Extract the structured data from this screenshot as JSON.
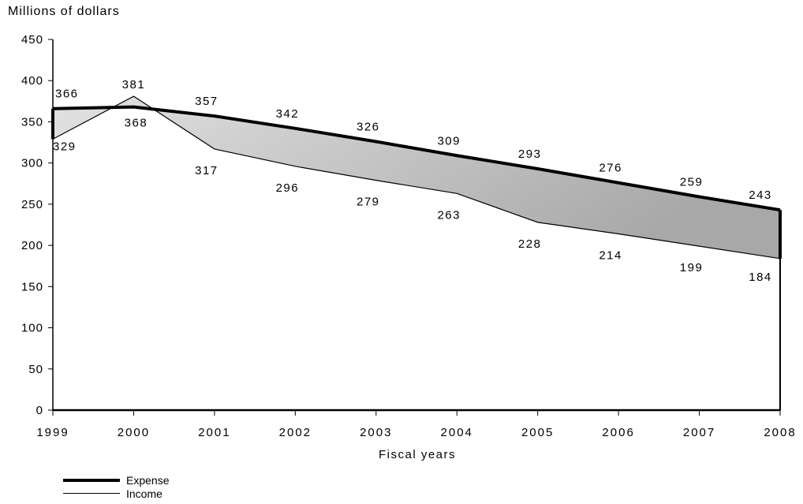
{
  "chart_data": {
    "type": "line",
    "title": "",
    "ylabel": "Millions of dollars",
    "xlabel": "Fiscal years",
    "x": [
      "1999",
      "2000",
      "2001",
      "2002",
      "2003",
      "2004",
      "2005",
      "2006",
      "2007",
      "2008"
    ],
    "ylim": [
      0,
      450
    ],
    "yticks": [
      0,
      50,
      100,
      150,
      200,
      250,
      300,
      350,
      400,
      450
    ],
    "grid": false,
    "legend_position": "bottom-left",
    "shaded_between_series": true,
    "series": [
      {
        "name": "Expense",
        "values": [
          366,
          368,
          357,
          342,
          326,
          309,
          293,
          276,
          259,
          243
        ],
        "color": "#000000",
        "style": "thick"
      },
      {
        "name": "Income",
        "values": [
          329,
          381,
          317,
          296,
          279,
          263,
          228,
          214,
          199,
          184
        ],
        "color": "#000000",
        "style": "thin"
      }
    ],
    "fill_colors": [
      "#e2e2e2",
      "#a8a8a8"
    ]
  }
}
